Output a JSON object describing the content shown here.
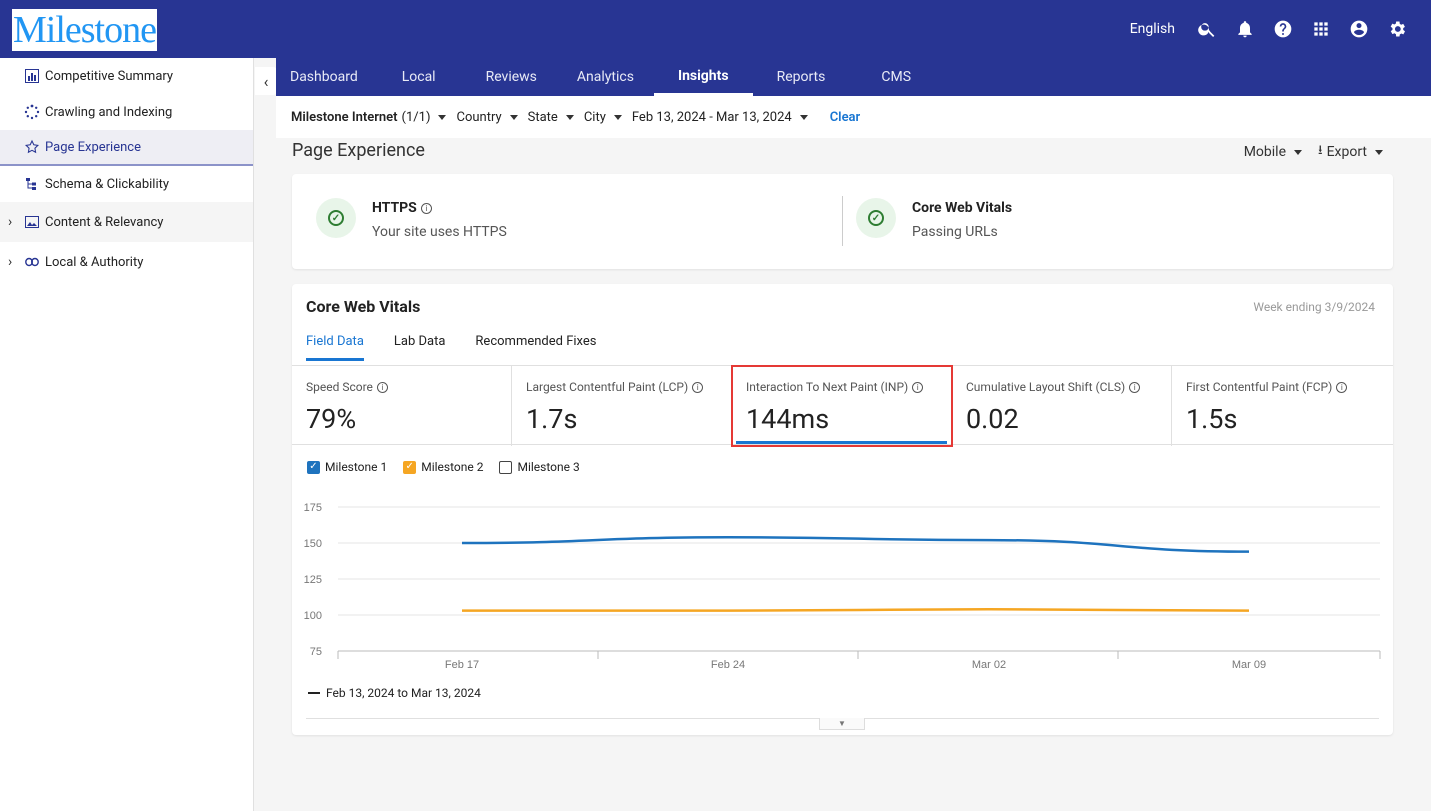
{
  "app": {
    "logo": "Milestone",
    "language": "English",
    "top_icons": [
      "search-icon",
      "bell-icon",
      "help-icon",
      "apps-grid-icon",
      "account-icon",
      "gear-icon"
    ]
  },
  "sidebar": {
    "items": [
      {
        "label": "Competitive Summary",
        "icon": "bar-chart-icon"
      },
      {
        "label": "Crawling and Indexing",
        "icon": "spinner-icon"
      },
      {
        "label": "Page Experience",
        "icon": "star-icon",
        "active": true
      },
      {
        "label": "Schema & Clickability",
        "icon": "schema-icon"
      }
    ],
    "groups": [
      {
        "label": "Content & Relevancy",
        "icon": "image-icon"
      },
      {
        "label": "Local & Authority",
        "icon": "link-icon"
      }
    ]
  },
  "nav": {
    "tabs": [
      "Dashboard",
      "Local",
      "Reviews",
      "Analytics",
      "Insights",
      "Reports",
      "CMS"
    ],
    "active": "Insights"
  },
  "filters": {
    "account": "Milestone Internet",
    "account_count": "(1/1)",
    "country": "Country",
    "state": "State",
    "city": "City",
    "date_range": "Feb 13, 2024 - Mar 13, 2024",
    "clear": "Clear"
  },
  "page": {
    "title": "Page Experience",
    "device": "Mobile",
    "export": "Export"
  },
  "summary": {
    "https_title": "HTTPS",
    "https_sub": "Your site uses HTTPS",
    "cwv_title": "Core Web Vitals",
    "cwv_sub": "Passing URLs"
  },
  "cwv": {
    "title": "Core Web Vitals",
    "week": "Week ending 3/9/2024",
    "tabs": [
      "Field Data",
      "Lab Data",
      "Recommended Fixes"
    ],
    "metrics": [
      {
        "label": "Speed Score",
        "value": "79%"
      },
      {
        "label": "Largest Contentful Paint (LCP)",
        "value": "1.7s"
      },
      {
        "label": "Interaction To Next Paint (INP)",
        "value": "144ms"
      },
      {
        "label": "Cumulative Layout Shift (CLS)",
        "value": "0.02"
      },
      {
        "label": "First Contentful Paint (FCP)",
        "value": "1.5s"
      }
    ],
    "legend": [
      {
        "label": "Milestone 1",
        "checked": true,
        "color": "#1e73be"
      },
      {
        "label": "Milestone 2",
        "checked": true,
        "color": "#f5a623"
      },
      {
        "label": "Milestone 3",
        "checked": false,
        "color": "#ffffff"
      }
    ],
    "range_label": "Feb 13, 2024 to Mar 13, 2024"
  },
  "chart_data": {
    "type": "line",
    "x": [
      "Feb 17",
      "Feb 24",
      "Mar 02",
      "Mar 09"
    ],
    "series": [
      {
        "name": "Milestone 1",
        "color": "#1e73be",
        "values": [
          150,
          154,
          152,
          144
        ]
      },
      {
        "name": "Milestone 2",
        "color": "#f5a623",
        "values": [
          103,
          103,
          104,
          103
        ]
      }
    ],
    "yticks": [
      75,
      100,
      125,
      150,
      175
    ],
    "ylim": [
      75,
      175
    ],
    "grid": true
  }
}
